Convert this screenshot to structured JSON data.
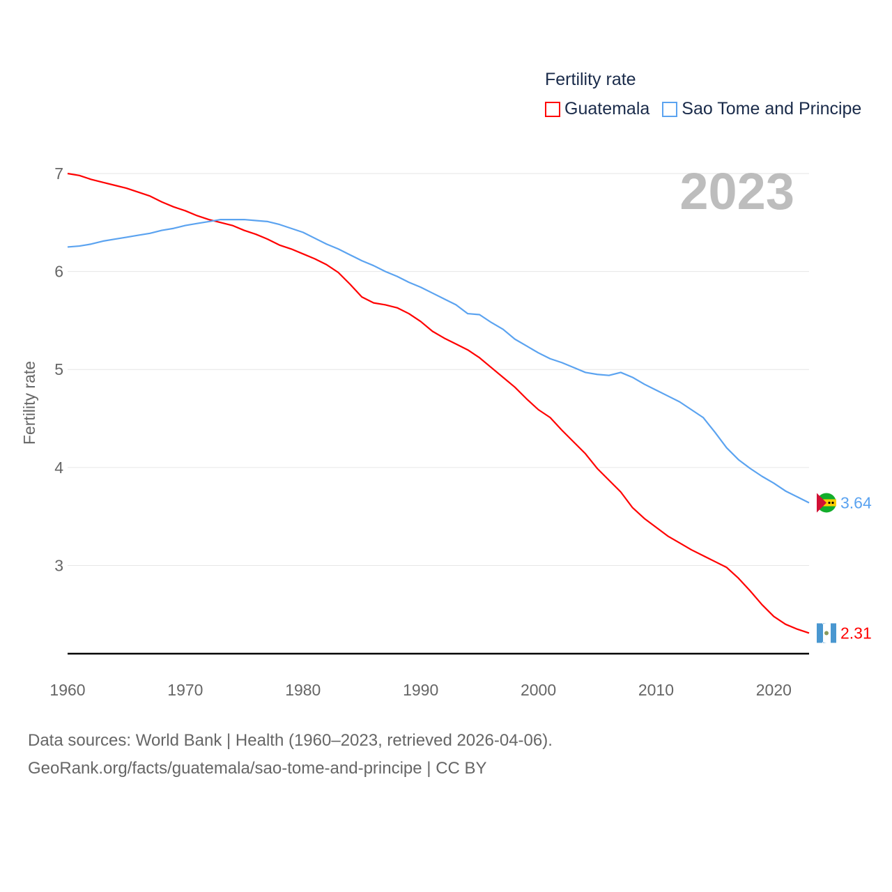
{
  "chart_data": {
    "type": "line",
    "title": "",
    "xlabel": "",
    "ylabel": "Fertility rate",
    "ylim": [
      2.1,
      7
    ],
    "xlim": [
      1960,
      2023
    ],
    "yticks": [
      3,
      4,
      5,
      6,
      7
    ],
    "xticks": [
      1960,
      1970,
      1980,
      1990,
      2000,
      2010,
      2020
    ],
    "grid": true,
    "year_label": "2023",
    "legend": {
      "title": "Fertility rate",
      "placement": "top-right"
    },
    "series": [
      {
        "name": "Guatemala",
        "color": "#ff0000",
        "end_label": "2.31",
        "flag": "guatemala-flag",
        "values": [
          7.0,
          6.98,
          6.94,
          6.91,
          6.88,
          6.85,
          6.81,
          6.77,
          6.71,
          6.66,
          6.62,
          6.57,
          6.53,
          6.5,
          6.47,
          6.42,
          6.38,
          6.33,
          6.27,
          6.23,
          6.18,
          6.13,
          6.07,
          5.99,
          5.87,
          5.74,
          5.68,
          5.66,
          5.63,
          5.57,
          5.49,
          5.39,
          5.32,
          5.26,
          5.2,
          5.12,
          5.02,
          4.92,
          4.82,
          4.7,
          4.59,
          4.51,
          4.38,
          4.26,
          4.14,
          3.99,
          3.87,
          3.75,
          3.59,
          3.48,
          3.39,
          3.3,
          3.23,
          3.16,
          3.1,
          3.04,
          2.98,
          2.87,
          2.74,
          2.6,
          2.48,
          2.4,
          2.35,
          2.31
        ]
      },
      {
        "name": "Sao Tome and Principe",
        "color": "#5ba3f0",
        "end_label": "3.64",
        "flag": "sao-tome-flag",
        "values": [
          6.25,
          6.26,
          6.28,
          6.31,
          6.33,
          6.35,
          6.37,
          6.39,
          6.42,
          6.44,
          6.47,
          6.49,
          6.51,
          6.53,
          6.53,
          6.53,
          6.52,
          6.51,
          6.48,
          6.44,
          6.4,
          6.34,
          6.28,
          6.23,
          6.17,
          6.11,
          6.06,
          6.0,
          5.95,
          5.89,
          5.84,
          5.78,
          5.72,
          5.66,
          5.57,
          5.56,
          5.48,
          5.41,
          5.31,
          5.24,
          5.17,
          5.11,
          5.07,
          5.02,
          4.97,
          4.95,
          4.94,
          4.97,
          4.92,
          4.85,
          4.79,
          4.73,
          4.67,
          4.59,
          4.51,
          4.36,
          4.2,
          4.08,
          3.99,
          3.91,
          3.84,
          3.76,
          3.7,
          3.64
        ]
      }
    ]
  },
  "footer": {
    "line1": "Data sources: World Bank | Health (1960–2023, retrieved 2026-04-06).",
    "line2": "GeoRank.org/facts/guatemala/sao-tome-and-principe | CC BY"
  }
}
